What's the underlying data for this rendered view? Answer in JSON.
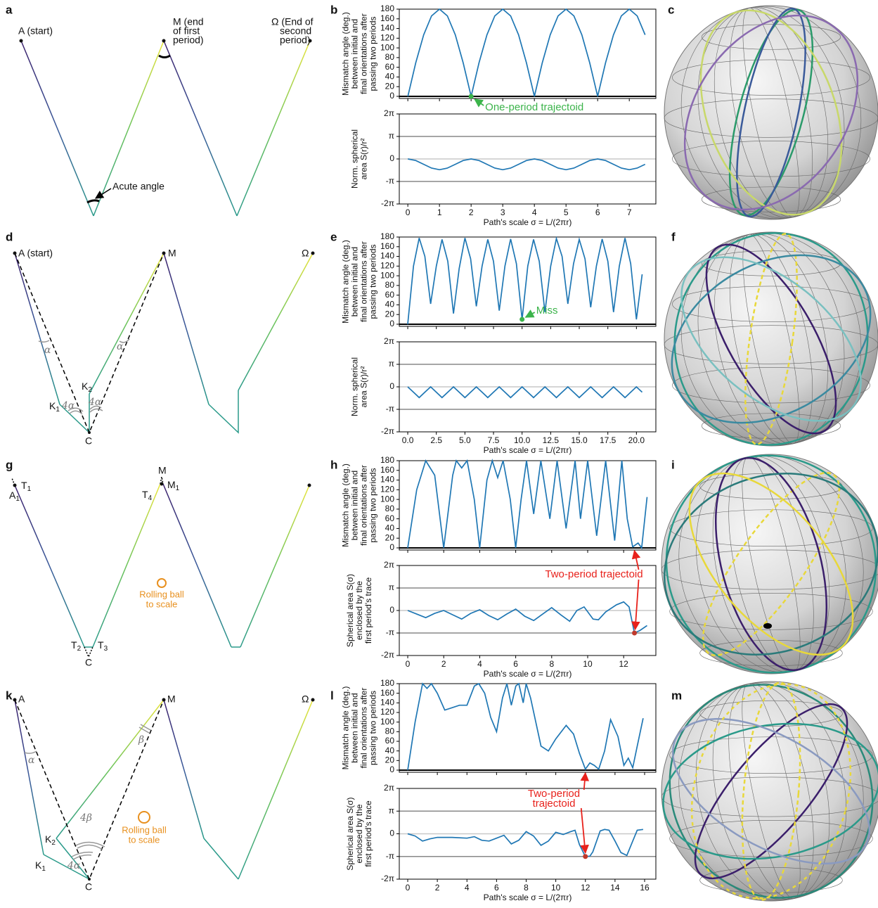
{
  "panel_letters": [
    "a",
    "b",
    "c",
    "d",
    "e",
    "f",
    "g",
    "h",
    "i",
    "k",
    "l",
    "m"
  ],
  "diagrams": {
    "a": {
      "start": "A (start)",
      "mid": [
        "M (end",
        "of first",
        "period)"
      ],
      "end": [
        "Ω (End of",
        "second",
        "period)"
      ],
      "angle": "Acute angle"
    },
    "d": {
      "start": "A (start)",
      "mid": "M",
      "end": "Ω",
      "alpha1": "α",
      "alpha2": "α",
      "k1": {
        "text": "K",
        "sub": "1"
      },
      "k2": {
        "text": "K",
        "sub": "2"
      },
      "angle1": "4α",
      "angle2": "4α",
      "c": "C"
    },
    "g": {
      "a1": {
        "text": "A",
        "sub": "1"
      },
      "t1": {
        "text": "T",
        "sub": "1"
      },
      "m": "M",
      "m1": {
        "text": "M",
        "sub": "1"
      },
      "t4": {
        "text": "T",
        "sub": "4"
      },
      "t2": {
        "text": "T",
        "sub": "2"
      },
      "t3": {
        "text": "T",
        "sub": "3"
      },
      "c": "C",
      "ball": [
        "Rolling ball",
        "to scale"
      ]
    },
    "k": {
      "a": "A",
      "m": "M",
      "end": "Ω",
      "alpha": "α",
      "beta": "β",
      "angle_b": "4β",
      "angle_a": "4α",
      "k2": {
        "text": "K",
        "sub": "2"
      },
      "k1": {
        "text": "K",
        "sub": "1"
      },
      "c": "C",
      "ball": [
        "Rolling ball",
        "to scale"
      ]
    }
  },
  "chart_data": [
    {
      "type": "line",
      "ylabel": [
        "Mismatch angle (deg.)",
        "between initial and",
        "final orientations after",
        "passing two periods"
      ],
      "x": [
        0,
        0.25,
        0.5,
        0.75,
        1,
        1.25,
        1.5,
        1.75,
        2,
        2.25,
        2.5,
        2.75,
        3,
        3.25,
        3.5,
        3.75,
        4,
        4.25,
        4.5,
        4.75,
        5,
        5.25,
        5.5,
        5.75,
        6,
        6.25,
        6.5,
        6.75,
        7,
        7.25,
        7.5
      ],
      "values": [
        0,
        69,
        127,
        166,
        180,
        166,
        127,
        69,
        0,
        69,
        127,
        166,
        180,
        166,
        127,
        69,
        0,
        69,
        127,
        166,
        180,
        166,
        127,
        69,
        0,
        69,
        127,
        166,
        180,
        166,
        127
      ],
      "color": "#1f77b4",
      "xlim": [
        -0.27,
        7.84
      ],
      "ylim": [
        -4.4,
        180
      ],
      "xticks": [
        0,
        1,
        2,
        3,
        4,
        5,
        6,
        7
      ],
      "xtick_labels": false,
      "yticks": [
        0,
        20,
        40,
        60,
        80,
        100,
        120,
        140,
        160,
        180
      ],
      "hlines": [
        {
          "value": 0,
          "color": "#000000",
          "width": 2
        }
      ],
      "markers": [
        {
          "x": 2,
          "y": 0,
          "color": "#3cb44b"
        }
      ],
      "annotation": {
        "text": [
          "One-period trajectoid"
        ],
        "color": "#3cb44b"
      }
    },
    {
      "type": "line",
      "ylabel": [
        "Norm. spherical",
        "area S(r)/r²"
      ],
      "xlabel": "Path's scale σ = L/(2πr)",
      "x": [
        0,
        0.25,
        0.5,
        0.75,
        1,
        1.25,
        1.5,
        1.75,
        2,
        2.25,
        2.5,
        2.75,
        3,
        3.25,
        3.5,
        3.75,
        4,
        4.25,
        4.5,
        4.75,
        5,
        5.25,
        5.5,
        5.75,
        6,
        6.25,
        6.5,
        6.75,
        7,
        7.25,
        7.5
      ],
      "values": [
        0,
        -0.22,
        -0.75,
        -1.28,
        -1.5,
        -1.28,
        -0.75,
        -0.22,
        0,
        -0.22,
        -0.75,
        -1.28,
        -1.5,
        -1.28,
        -0.75,
        -0.22,
        0,
        -0.22,
        -0.75,
        -1.28,
        -1.5,
        -1.28,
        -0.75,
        -0.22,
        0,
        -0.22,
        -0.75,
        -1.28,
        -1.5,
        -1.28,
        -0.75
      ],
      "color": "#1f77b4",
      "xlim": [
        -0.27,
        7.84
      ],
      "ylim": [
        -6.2832,
        6.2832
      ],
      "xticks": [
        0,
        1,
        2,
        3,
        4,
        5,
        6,
        7
      ],
      "yticks": [
        {
          "value": -6.2832,
          "label": "-2π"
        },
        {
          "value": -3.1416,
          "label": "-π"
        },
        0,
        {
          "value": 3.1416,
          "label": "π"
        },
        {
          "value": 6.2832,
          "label": "2π"
        }
      ],
      "hlines": [
        {
          "value": 3.1416,
          "color": "#888888",
          "width": 1.5
        },
        {
          "value": 0,
          "color": "#c8c8c8",
          "width": 1.5
        },
        {
          "value": -3.1416,
          "color": "#888888",
          "width": 1.5
        }
      ]
    },
    {
      "type": "line",
      "ylabel": [
        "Mismatch angle (deg.)",
        "between initial and",
        "final orientations after",
        "passing two periods"
      ],
      "x": [
        0,
        0.5,
        1,
        1.5,
        2,
        2.5,
        3,
        3.5,
        4,
        4.5,
        5,
        5.5,
        6,
        6.5,
        7,
        7.5,
        8,
        8.5,
        9,
        9.5,
        10,
        10.5,
        11,
        11.5,
        12,
        12.5,
        13,
        13.5,
        14,
        14.5,
        15,
        15.5,
        16,
        16.5,
        17,
        17.5,
        18,
        18.5,
        19,
        19.5,
        20,
        20.5
      ],
      "values": [
        0,
        120,
        178,
        140,
        42,
        120,
        175,
        130,
        22,
        115,
        178,
        135,
        37,
        120,
        175,
        130,
        28,
        120,
        176,
        125,
        10,
        120,
        175,
        130,
        25,
        120,
        177,
        140,
        42,
        125,
        175,
        135,
        35,
        120,
        176,
        130,
        25,
        120,
        178,
        125,
        10,
        103
      ],
      "color": "#1f77b4",
      "xlim": [
        -0.74,
        21.7
      ],
      "ylim": [
        -4.4,
        180
      ],
      "xticks": [
        0,
        2.5,
        5,
        7.5,
        10,
        12.5,
        15,
        17.5,
        20
      ],
      "xtick_labels": false,
      "yticks": [
        0,
        20,
        40,
        60,
        80,
        100,
        120,
        140,
        160,
        180
      ],
      "hlines": [
        {
          "value": 0,
          "color": "#000000",
          "width": 2
        }
      ],
      "markers": [
        {
          "x": 10,
          "y": 10,
          "color": "#3cb44b"
        }
      ],
      "annotation": {
        "text": [
          "Miss"
        ],
        "color": "#3cb44b"
      }
    },
    {
      "type": "line",
      "ylabel": [
        "Norm. spherical",
        "area S(r)/r²"
      ],
      "xlabel": "Path's scale σ = L/(2πr)",
      "x": [
        0,
        0.5,
        1,
        1.5,
        2,
        2.5,
        3,
        3.5,
        4,
        4.5,
        5,
        5.5,
        6,
        6.5,
        7,
        7.5,
        8,
        8.5,
        9,
        9.5,
        10,
        10.5,
        11,
        11.5,
        12,
        12.5,
        13,
        13.5,
        14,
        14.5,
        15,
        15.5,
        16,
        16.5,
        17,
        17.5,
        18,
        18.5,
        19,
        19.5,
        20,
        20.5
      ],
      "values": [
        0,
        -0.75,
        -1.5,
        -0.75,
        0,
        -0.75,
        -1.5,
        -0.75,
        0,
        -0.75,
        -1.5,
        -0.75,
        0,
        -0.75,
        -1.5,
        -0.75,
        0,
        -0.75,
        -1.5,
        -0.75,
        0,
        -0.75,
        -1.5,
        -0.75,
        0,
        -0.75,
        -1.5,
        -0.75,
        0,
        -0.75,
        -1.5,
        -0.75,
        0,
        -0.75,
        -1.5,
        -0.75,
        0,
        -0.75,
        -1.5,
        -0.75,
        0,
        -0.75
      ],
      "color": "#1f77b4",
      "xlim": [
        -0.74,
        21.7
      ],
      "ylim": [
        -6.2832,
        6.2832
      ],
      "xticks": [
        {
          "value": 0,
          "label": "0.0"
        },
        {
          "value": 2.5,
          "label": "2.5"
        },
        {
          "value": 5,
          "label": "5.0"
        },
        {
          "value": 7.5,
          "label": "7.5"
        },
        {
          "value": 10,
          "label": "10.0"
        },
        {
          "value": 12.5,
          "label": "12.5"
        },
        {
          "value": 15,
          "label": "15.0"
        },
        {
          "value": 17.5,
          "label": "17.5"
        },
        {
          "value": 20,
          "label": "20.0"
        }
      ],
      "yticks": [
        {
          "value": -6.2832,
          "label": "-2π"
        },
        {
          "value": -3.1416,
          "label": "-π"
        },
        0,
        {
          "value": 3.1416,
          "label": "π"
        },
        {
          "value": 6.2832,
          "label": "2π"
        }
      ],
      "hlines": [
        {
          "value": 3.1416,
          "color": "#888888",
          "width": 1.5
        },
        {
          "value": 0,
          "color": "#c8c8c8",
          "width": 1.5
        },
        {
          "value": -3.1416,
          "color": "#888888",
          "width": 1.5
        }
      ]
    },
    {
      "type": "line",
      "ylabel": [
        "Mismatch angle (deg.)",
        "between initial and",
        "final orientations after",
        "passing two periods"
      ],
      "x": [
        0,
        0.5,
        1,
        1.5,
        2,
        2.5,
        2.7,
        3,
        3.3,
        3.7,
        4,
        4.4,
        4.7,
        5,
        5.3,
        5.7,
        6,
        6.3,
        6.6,
        7,
        7.4,
        7.9,
        8.3,
        8.8,
        9.3,
        9.6,
        10,
        10.5,
        11,
        11.5,
        11.9,
        12.2,
        12.5,
        12.8,
        13.0,
        13.3
      ],
      "values": [
        0,
        120,
        180,
        150,
        0,
        150,
        180,
        165,
        180,
        100,
        0,
        140,
        180,
        145,
        180,
        100,
        0,
        100,
        180,
        70,
        180,
        60,
        180,
        40,
        180,
        60,
        180,
        25,
        180,
        15,
        180,
        60,
        2,
        10,
        0,
        105
      ],
      "color": "#1f77b4",
      "xlim": [
        -0.47,
        13.79
      ],
      "ylim": [
        -4.4,
        180
      ],
      "xticks": [
        0,
        2,
        4,
        6,
        8,
        10,
        12
      ],
      "xtick_labels": false,
      "yticks": [
        0,
        20,
        40,
        60,
        80,
        100,
        120,
        140,
        160,
        180
      ],
      "hlines": [
        {
          "value": 0,
          "color": "#000000",
          "width": 2
        }
      ]
    },
    {
      "type": "line",
      "ylabel": [
        "Spherical area S(σ)",
        "enclosed by the",
        "first period's trace"
      ],
      "xlabel": "Path's scale σ = L/(2πr)",
      "x": [
        0,
        0.5,
        1,
        1.5,
        2,
        2.5,
        3,
        3.5,
        4,
        4.5,
        5,
        5.5,
        6,
        6.5,
        7,
        7.5,
        8,
        8.5,
        9,
        9.4,
        9.8,
        10.3,
        10.6,
        11,
        11.6,
        12,
        12.3,
        12.6,
        12.9,
        13.3
      ],
      "values": [
        0,
        -0.5,
        -1.0,
        -0.4,
        0,
        -0.6,
        -1.2,
        -0.4,
        0.1,
        -0.7,
        -1.3,
        -0.5,
        0.2,
        -0.8,
        -1.4,
        -0.5,
        0.4,
        -0.6,
        -1.5,
        0,
        0.5,
        -1.2,
        -1.3,
        -0.2,
        0.8,
        1.2,
        0.5,
        -3.14,
        -2.8,
        -2.1
      ],
      "color": "#1f77b4",
      "xlim": [
        -0.47,
        13.79
      ],
      "ylim": [
        -6.2832,
        6.2832
      ],
      "xticks": [
        0,
        2,
        4,
        6,
        8,
        10,
        12
      ],
      "yticks": [
        {
          "value": -6.2832,
          "label": "-2π"
        },
        {
          "value": -3.1416,
          "label": "-π"
        },
        0,
        {
          "value": 3.1416,
          "label": "π"
        },
        {
          "value": 6.2832,
          "label": "2π"
        }
      ],
      "hlines": [
        {
          "value": 3.1416,
          "color": "#888888",
          "width": 1.5
        },
        {
          "value": 0,
          "color": "#c8c8c8",
          "width": 1.5
        },
        {
          "value": -3.1416,
          "color": "#888888",
          "width": 1.5
        }
      ],
      "markers": [
        {
          "x": 12.6,
          "y": -3.14,
          "color": "#c0392b"
        }
      ],
      "annotation": {
        "text": [
          "Two-period trajectoid"
        ],
        "color": "#e8211b"
      }
    },
    {
      "type": "line",
      "ylabel": [
        "Mismatch angle (deg.)",
        "between initial and",
        "final orientations after",
        "passing two periods"
      ],
      "x": [
        0,
        0.5,
        1,
        1.3,
        1.6,
        2,
        2.5,
        3,
        3.5,
        4,
        4.5,
        4.8,
        5.2,
        5.6,
        6,
        6.4,
        6.7,
        7,
        7.3,
        7.5,
        7.8,
        8,
        8.3,
        9,
        9.5,
        10,
        10.7,
        11.2,
        11.6,
        12,
        12.3,
        12.6,
        12.9,
        13.3,
        13.7,
        14.2,
        14.6,
        14.9,
        15.2,
        15.5,
        15.9
      ],
      "values": [
        0,
        100,
        180,
        170,
        180,
        160,
        125,
        130,
        135,
        135,
        175,
        180,
        160,
        110,
        80,
        150,
        180,
        135,
        175,
        180,
        140,
        180,
        150,
        50,
        40,
        65,
        93,
        75,
        35,
        2,
        15,
        10,
        2,
        40,
        105,
        70,
        10,
        25,
        5,
        50,
        108
      ],
      "color": "#1f77b4",
      "xlim": [
        -0.57,
        16.76
      ],
      "ylim": [
        -4.4,
        180
      ],
      "xticks": [
        0,
        2,
        4,
        6,
        8,
        10,
        12,
        14,
        16
      ],
      "xtick_labels": false,
      "yticks": [
        0,
        20,
        40,
        60,
        80,
        100,
        120,
        140,
        160,
        180
      ],
      "hlines": [
        {
          "value": 0,
          "color": "#000000",
          "width": 2
        }
      ]
    },
    {
      "type": "line",
      "ylabel": [
        "Spherical area S(σ)",
        "enclosed by the",
        "first period's trace"
      ],
      "xlabel": "Path's scale σ = L/(2πr)",
      "x": [
        0,
        0.5,
        1,
        1.5,
        2,
        3,
        4,
        4.5,
        5,
        5.5,
        6,
        6.5,
        7,
        7.5,
        8,
        8.5,
        9,
        9.5,
        10,
        10.5,
        11,
        11.3,
        11.6,
        12,
        12.3,
        12.5,
        13,
        13.3,
        13.6,
        14,
        14.4,
        14.8,
        15.2,
        15.5,
        15.9
      ],
      "values": [
        0,
        -0.3,
        -1.0,
        -0.7,
        -0.5,
        -0.5,
        -0.6,
        -0.4,
        -0.9,
        -1.0,
        -0.6,
        -0.2,
        -1.4,
        -0.9,
        0.3,
        -0.3,
        -1.6,
        -1.0,
        0.2,
        -0.1,
        0.3,
        0.5,
        -1.5,
        -3.14,
        -3.1,
        -2.5,
        0.4,
        0.6,
        0.5,
        -1.0,
        -2.6,
        -3.0,
        -1.0,
        0.5,
        0.6
      ],
      "color": "#1f77b4",
      "xlim": [
        -0.57,
        16.76
      ],
      "ylim": [
        -6.2832,
        6.2832
      ],
      "xticks": [
        0,
        2,
        4,
        6,
        8,
        10,
        12,
        14,
        16
      ],
      "yticks": [
        {
          "value": -6.2832,
          "label": "-2π"
        },
        {
          "value": -3.1416,
          "label": "-π"
        },
        0,
        {
          "value": 3.1416,
          "label": "π"
        },
        {
          "value": 6.2832,
          "label": "2π"
        }
      ],
      "hlines": [
        {
          "value": 3.1416,
          "color": "#888888",
          "width": 1.5
        },
        {
          "value": 0,
          "color": "#c8c8c8",
          "width": 1.5
        },
        {
          "value": -3.1416,
          "color": "#888888",
          "width": 1.5
        }
      ],
      "markers": [
        {
          "x": 12,
          "y": -3.14,
          "color": "#c0392b"
        }
      ],
      "annotation": {
        "text": [
          "Two-period",
          "trajectoid"
        ],
        "color": "#e8211b"
      }
    }
  ]
}
